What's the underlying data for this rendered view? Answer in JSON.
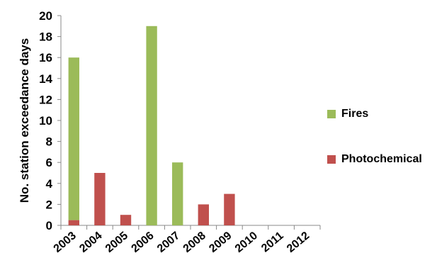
{
  "chart_data": {
    "type": "bar",
    "stacked": true,
    "categories": [
      "2003",
      "2004",
      "2005",
      "2006",
      "2007",
      "2008",
      "2009",
      "2010",
      "2011",
      "2012"
    ],
    "series": [
      {
        "name": "Photochemical",
        "color": "#c0504d",
        "values": [
          0.5,
          5,
          1,
          0,
          0,
          2,
          3,
          0,
          0,
          0
        ]
      },
      {
        "name": "Fires",
        "color": "#9bbb59",
        "values": [
          15.5,
          0,
          0,
          19,
          6,
          0,
          0,
          0,
          0,
          0
        ]
      }
    ],
    "ylabel": "No. station exceedance days",
    "xlabel": "",
    "ylim": [
      0,
      20
    ],
    "yticks": [
      0,
      2,
      4,
      6,
      8,
      10,
      12,
      14,
      16,
      18,
      20
    ],
    "grid": false,
    "legend": {
      "placement": "right",
      "items": [
        {
          "label": "Fires",
          "color": "#9bbb59"
        },
        {
          "label": "Photochemical",
          "color": "#c0504d"
        }
      ]
    }
  }
}
